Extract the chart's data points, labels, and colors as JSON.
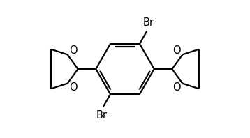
{
  "bg_color": "#ffffff",
  "line_color": "#000000",
  "line_width": 1.6,
  "font_size": 10.5,
  "figsize": [
    3.58,
    1.98
  ],
  "dpi": 100,
  "xlim": [
    -3.4,
    3.4
  ],
  "ylim": [
    -2.0,
    2.0
  ]
}
